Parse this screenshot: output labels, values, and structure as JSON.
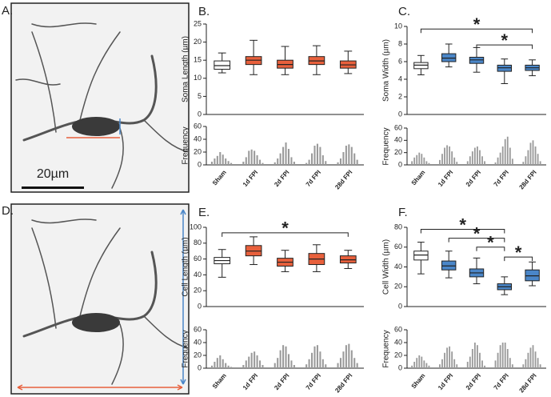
{
  "images": [
    {
      "label": "A.",
      "scale_bar": "20µm"
    },
    {
      "label": "D."
    }
  ],
  "chart_data": [
    {
      "type": "box",
      "label": "B.",
      "ylabel": "Soma Length (µm)",
      "ylim": [
        0,
        25
      ],
      "yticks": [
        0,
        5,
        10,
        15,
        20,
        25
      ],
      "categories": [
        "Sham",
        "1d FPI",
        "2d FPI",
        "7d FPI",
        "28d FPI"
      ],
      "colors": [
        "#ffffff",
        "#e8603c",
        "#e8603c",
        "#e8603c",
        "#e8603c"
      ],
      "boxes": [
        {
          "whislo": 11.5,
          "q1": 12.5,
          "med": 13.5,
          "q3": 14.8,
          "whishi": 17
        },
        {
          "whislo": 11,
          "q1": 13.8,
          "med": 15,
          "q3": 16,
          "whishi": 20.5
        },
        {
          "whislo": 11,
          "q1": 12.8,
          "med": 13.8,
          "q3": 15,
          "whishi": 18.8
        },
        {
          "whislo": 11,
          "q1": 13.8,
          "med": 14.8,
          "q3": 16,
          "whishi": 19
        },
        {
          "whislo": 11.3,
          "q1": 12.8,
          "med": 13.7,
          "q3": 14.8,
          "whishi": 17.5
        }
      ],
      "annotations": [],
      "frequency": {
        "ylabel": "Frequency",
        "ylim": [
          0,
          60
        ],
        "yticks": [
          0,
          20,
          40,
          60
        ],
        "color": "#9a9a9a",
        "values": [
          [
            5,
            10,
            14,
            20,
            16,
            10,
            6,
            3
          ],
          [
            5,
            12,
            22,
            24,
            22,
            15,
            8,
            3
          ],
          [
            4,
            10,
            18,
            28,
            35,
            25,
            12,
            5
          ],
          [
            3,
            8,
            18,
            30,
            33,
            28,
            15,
            6
          ],
          [
            4,
            10,
            20,
            30,
            32,
            28,
            18,
            8
          ]
        ]
      }
    },
    {
      "type": "box",
      "label": "C.",
      "ylabel": "Soma Width (µm)",
      "ylim": [
        0,
        10
      ],
      "yticks": [
        0,
        2,
        4,
        6,
        8,
        10
      ],
      "categories": [
        "Sham",
        "1d FPI",
        "2d FPI",
        "7d FPI",
        "28d FPI"
      ],
      "colors": [
        "#ffffff",
        "#4a86c8",
        "#4a86c8",
        "#4a86c8",
        "#4a86c8"
      ],
      "boxes": [
        {
          "whislo": 4.5,
          "q1": 5.2,
          "med": 5.6,
          "q3": 5.9,
          "whishi": 6.7
        },
        {
          "whislo": 5.4,
          "q1": 6.0,
          "med": 6.4,
          "q3": 6.9,
          "whishi": 8.0
        },
        {
          "whislo": 4.8,
          "q1": 5.8,
          "med": 6.2,
          "q3": 6.5,
          "whishi": 7.6
        },
        {
          "whislo": 3.5,
          "q1": 4.9,
          "med": 5.3,
          "q3": 5.6,
          "whishi": 6.3
        },
        {
          "whislo": 4.4,
          "q1": 5.0,
          "med": 5.3,
          "q3": 5.6,
          "whishi": 6.2
        }
      ],
      "annotations": [
        {
          "text": "*",
          "from": 0,
          "to": 4,
          "y": 9.7
        },
        {
          "text": "*",
          "from": 2,
          "to": 4,
          "y": 7.9
        }
      ],
      "frequency": {
        "ylabel": "Frequency",
        "ylim": [
          0,
          60
        ],
        "yticks": [
          0,
          20,
          40,
          60
        ],
        "color": "#9a9a9a",
        "values": [
          [
            6,
            12,
            16,
            20,
            18,
            12,
            6,
            3
          ],
          [
            8,
            18,
            28,
            32,
            30,
            22,
            12,
            5
          ],
          [
            6,
            14,
            22,
            28,
            30,
            24,
            14,
            6
          ],
          [
            4,
            12,
            20,
            30,
            42,
            46,
            28,
            10
          ],
          [
            5,
            14,
            24,
            36,
            40,
            30,
            18,
            6
          ]
        ]
      }
    },
    {
      "type": "box",
      "label": "E.",
      "ylabel": "Cell Length (µm)",
      "ylim": [
        0,
        100
      ],
      "yticks": [
        0,
        20,
        40,
        60,
        80,
        100
      ],
      "categories": [
        "Sham",
        "1d FPI",
        "2d FPI",
        "7d FPI",
        "28d FPI"
      ],
      "colors": [
        "#ffffff",
        "#e8603c",
        "#e8603c",
        "#e8603c",
        "#e8603c"
      ],
      "boxes": [
        {
          "whislo": 37,
          "q1": 54,
          "med": 58,
          "q3": 62,
          "whishi": 72
        },
        {
          "whislo": 53,
          "q1": 64,
          "med": 70,
          "q3": 77,
          "whishi": 88
        },
        {
          "whislo": 44,
          "q1": 51,
          "med": 56,
          "q3": 61,
          "whishi": 71
        },
        {
          "whislo": 44,
          "q1": 53,
          "med": 60,
          "q3": 67,
          "whishi": 78
        },
        {
          "whislo": 48,
          "q1": 55,
          "med": 59,
          "q3": 64,
          "whishi": 71
        }
      ],
      "annotations": [
        {
          "text": "*",
          "from": 0,
          "to": 4,
          "y": 93
        }
      ],
      "frequency": {
        "ylabel": "Frequency",
        "ylim": [
          0,
          60
        ],
        "yticks": [
          0,
          20,
          40,
          60
        ],
        "color": "#9a9a9a",
        "values": [
          [
            4,
            10,
            16,
            20,
            14,
            8,
            4,
            2
          ],
          [
            5,
            12,
            18,
            24,
            26,
            20,
            12,
            5
          ],
          [
            8,
            16,
            28,
            36,
            34,
            22,
            12,
            5
          ],
          [
            6,
            14,
            24,
            34,
            36,
            26,
            14,
            6
          ],
          [
            8,
            16,
            26,
            36,
            38,
            28,
            16,
            8
          ]
        ]
      }
    },
    {
      "type": "box",
      "label": "F.",
      "ylabel": "Cell Width (µm)",
      "ylim": [
        0,
        80
      ],
      "yticks": [
        0,
        20,
        40,
        60,
        80
      ],
      "categories": [
        "Sham",
        "1d FPI",
        "2d FPI",
        "7d FPI",
        "28d FPI"
      ],
      "colors": [
        "#ffffff",
        "#4a86c8",
        "#4a86c8",
        "#4a86c8",
        "#4a86c8"
      ],
      "boxes": [
        {
          "whislo": 33,
          "q1": 47,
          "med": 52,
          "q3": 56,
          "whishi": 65
        },
        {
          "whislo": 29,
          "q1": 37,
          "med": 41,
          "q3": 46,
          "whishi": 56
        },
        {
          "whislo": 23,
          "q1": 30,
          "med": 34,
          "q3": 38,
          "whishi": 49
        },
        {
          "whislo": 12,
          "q1": 17,
          "med": 20,
          "q3": 23,
          "whishi": 30
        },
        {
          "whislo": 21,
          "q1": 26,
          "med": 31,
          "q3": 37,
          "whishi": 45
        }
      ],
      "annotations": [
        {
          "text": "*",
          "from": 0,
          "to": 3,
          "y": 78
        },
        {
          "text": "*",
          "from": 1,
          "to": 3,
          "y": 69
        },
        {
          "text": "*",
          "from": 2,
          "to": 3,
          "y": 60
        },
        {
          "text": "*",
          "from": 3,
          "to": 4,
          "y": 50
        }
      ],
      "frequency": {
        "ylabel": "Frequency",
        "ylim": [
          0,
          60
        ],
        "yticks": [
          0,
          20,
          40,
          60
        ],
        "color": "#9a9a9a",
        "values": [
          [
            4,
            10,
            16,
            20,
            18,
            12,
            8,
            4
          ],
          [
            6,
            14,
            24,
            32,
            34,
            26,
            14,
            6
          ],
          [
            10,
            18,
            30,
            40,
            36,
            24,
            12,
            4
          ],
          [
            12,
            24,
            36,
            40,
            40,
            30,
            16,
            6
          ],
          [
            6,
            14,
            24,
            32,
            36,
            26,
            16,
            6
          ]
        ]
      }
    }
  ]
}
